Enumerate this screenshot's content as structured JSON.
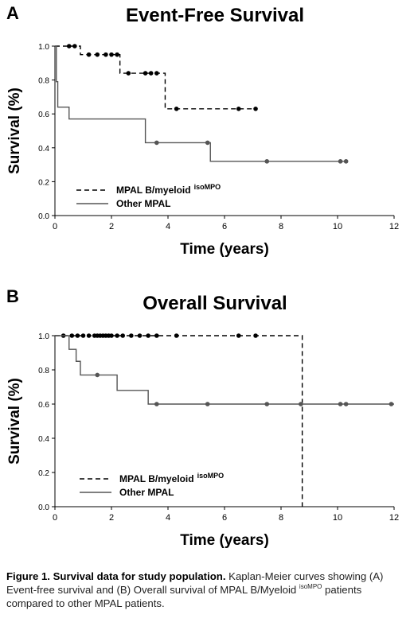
{
  "chart_data": [
    {
      "type": "line",
      "panel_label": "A",
      "title": "Event-Free Survival",
      "xlabel": "Time (years)",
      "ylabel": "Survival (%)",
      "xlim": [
        0,
        12
      ],
      "ylim": [
        0.0,
        1.0
      ],
      "xticks": [
        "0",
        "2",
        "4",
        "6",
        "8",
        "10",
        "12"
      ],
      "yticks": [
        "0.0",
        "0.2",
        "0.4",
        "0.6",
        "0.8",
        "1.0"
      ],
      "legend_position": "lower-left",
      "series": [
        {
          "name": "MPAL B/myeloid",
          "name_sup": "isoMPO",
          "style": "dashed",
          "color": "#000000",
          "steps": [
            [
              0,
              1.0
            ],
            [
              0.9,
              0.95
            ],
            [
              2.3,
              0.84
            ],
            [
              3.9,
              0.63
            ],
            [
              7.1,
              0.63
            ]
          ],
          "censored": [
            [
              0.5,
              1.0
            ],
            [
              0.7,
              1.0
            ],
            [
              1.2,
              0.95
            ],
            [
              1.5,
              0.95
            ],
            [
              1.8,
              0.95
            ],
            [
              2.0,
              0.95
            ],
            [
              2.2,
              0.95
            ],
            [
              2.6,
              0.84
            ],
            [
              3.2,
              0.84
            ],
            [
              3.4,
              0.84
            ],
            [
              3.6,
              0.84
            ],
            [
              4.3,
              0.63
            ],
            [
              6.5,
              0.63
            ],
            [
              7.1,
              0.63
            ]
          ]
        },
        {
          "name": "Other MPAL",
          "name_sup": "",
          "style": "solid",
          "color": "#555555",
          "steps": [
            [
              0,
              1.0
            ],
            [
              0.05,
              0.79
            ],
            [
              0.1,
              0.64
            ],
            [
              0.5,
              0.57
            ],
            [
              3.2,
              0.43
            ],
            [
              5.5,
              0.32
            ],
            [
              10.3,
              0.32
            ]
          ],
          "censored": [
            [
              3.6,
              0.43
            ],
            [
              5.4,
              0.43
            ],
            [
              7.5,
              0.32
            ],
            [
              10.1,
              0.32
            ],
            [
              10.3,
              0.32
            ]
          ]
        }
      ]
    },
    {
      "type": "line",
      "panel_label": "B",
      "title": "Overall Survival",
      "xlabel": "Time (years)",
      "ylabel": "Survival (%)",
      "xlim": [
        0,
        12
      ],
      "ylim": [
        0.0,
        1.0
      ],
      "xticks": [
        "0",
        "2",
        "4",
        "6",
        "8",
        "10",
        "12"
      ],
      "yticks": [
        "0.0",
        "0.2",
        "0.4",
        "0.6",
        "0.8",
        "1.0"
      ],
      "legend_position": "lower-left",
      "series": [
        {
          "name": "MPAL B/myeloid",
          "name_sup": "isoMPO",
          "style": "dashed",
          "color": "#000000",
          "steps": [
            [
              0,
              1.0
            ],
            [
              8.75,
              0.0
            ]
          ],
          "censored": [
            [
              0.3,
              1.0
            ],
            [
              0.6,
              1.0
            ],
            [
              0.8,
              1.0
            ],
            [
              1.0,
              1.0
            ],
            [
              1.2,
              1.0
            ],
            [
              1.4,
              1.0
            ],
            [
              1.5,
              1.0
            ],
            [
              1.6,
              1.0
            ],
            [
              1.7,
              1.0
            ],
            [
              1.8,
              1.0
            ],
            [
              1.9,
              1.0
            ],
            [
              2.0,
              1.0
            ],
            [
              2.2,
              1.0
            ],
            [
              2.4,
              1.0
            ],
            [
              2.7,
              1.0
            ],
            [
              3.0,
              1.0
            ],
            [
              3.3,
              1.0
            ],
            [
              3.6,
              1.0
            ],
            [
              4.3,
              1.0
            ],
            [
              6.5,
              1.0
            ],
            [
              7.1,
              1.0
            ]
          ]
        },
        {
          "name": "Other MPAL",
          "name_sup": "",
          "style": "solid",
          "color": "#555555",
          "steps": [
            [
              0,
              1.0
            ],
            [
              0.5,
              0.92
            ],
            [
              0.75,
              0.85
            ],
            [
              0.9,
              0.77
            ],
            [
              2.2,
              0.68
            ],
            [
              3.3,
              0.6
            ],
            [
              12,
              0.6
            ]
          ],
          "censored": [
            [
              1.5,
              0.77
            ],
            [
              3.6,
              0.6
            ],
            [
              5.4,
              0.6
            ],
            [
              7.5,
              0.6
            ],
            [
              8.7,
              0.6
            ],
            [
              10.1,
              0.6
            ],
            [
              10.3,
              0.6
            ],
            [
              11.9,
              0.6
            ]
          ]
        }
      ]
    }
  ],
  "caption": {
    "bold": "Figure 1. Survival data for study population.",
    "text1": " Kaplan-Meier curves showing (A) Event-free survival and (B) Overall survival of MPAL B/Myeloid ",
    "sup": "isoMPO",
    "text2": " patients compared to other MPAL patients."
  }
}
